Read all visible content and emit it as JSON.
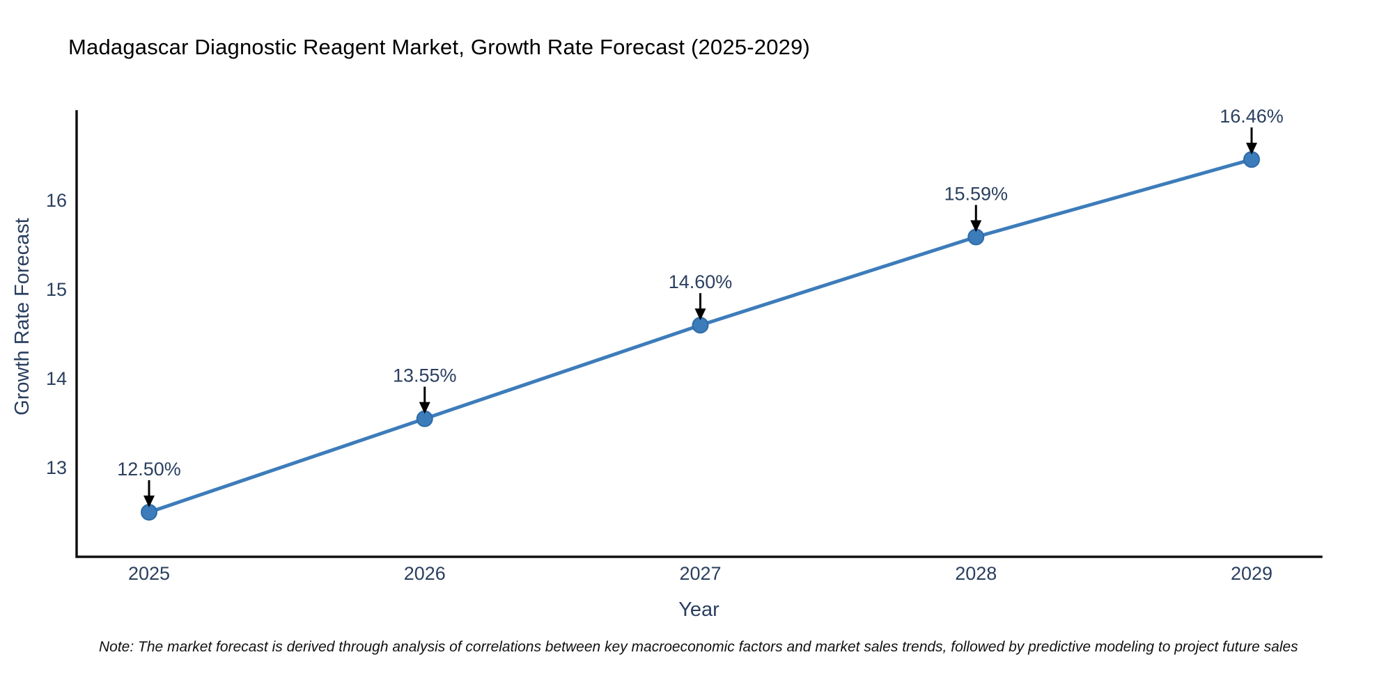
{
  "title": "Madagascar Diagnostic Reagent Market, Growth Rate Forecast (2025-2029)",
  "note": "Note: The market forecast is derived through analysis of correlations between key macroeconomic factors and market sales trends, followed by predictive modeling to project future sales",
  "colors": {
    "title_text": "#2a3f5f",
    "axis_text": "#2a3f5f",
    "annotation_text": "#2a3f5f",
    "line": "#3d7cba",
    "marker_fill": "#3d7cba",
    "marker_edge": "#2e6ba8",
    "axis_line": "#101010",
    "arrow": "#000000",
    "background": "#ffffff"
  },
  "chart_data": {
    "type": "line",
    "title": "Madagascar Diagnostic Reagent Market, Growth Rate Forecast (2025-2029)",
    "x": [
      2025,
      2026,
      2027,
      2028,
      2029
    ],
    "y": [
      12.5,
      13.55,
      14.6,
      15.59,
      16.46
    ],
    "point_labels": [
      "12.50%",
      "13.55%",
      "14.60%",
      "15.59%",
      "16.46%"
    ],
    "xlabel": "Year",
    "ylabel": "Growth Rate Forecast",
    "yticks": [
      13,
      14,
      15,
      16
    ],
    "ylim": [
      12.0,
      17.0
    ],
    "grid": false,
    "legend": "none",
    "annotation_style": "black-arrow-down-to-point",
    "marker": "circle"
  }
}
